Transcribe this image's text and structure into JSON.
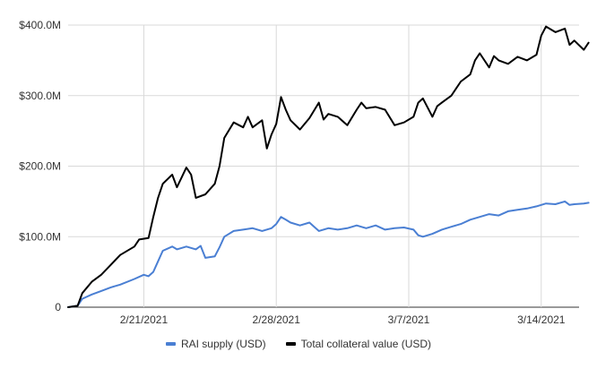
{
  "chart_data": {
    "type": "line",
    "title": "",
    "xlabel": "",
    "ylabel": "",
    "x_range": [
      "2021-02-17",
      "2021-03-16"
    ],
    "x_ticks": [
      {
        "date": "2021-02-21",
        "label": "2/21/2021"
      },
      {
        "date": "2021-02-28",
        "label": "2/28/2021"
      },
      {
        "date": "2021-03-07",
        "label": "3/7/2021"
      },
      {
        "date": "2021-03-14",
        "label": "3/14/2021"
      }
    ],
    "y_ticks": [
      {
        "value": 0,
        "label": "0"
      },
      {
        "value": 100,
        "label": "$100.0M"
      },
      {
        "value": 200,
        "label": "$200.0M"
      },
      {
        "value": 300,
        "label": "$300.0M"
      },
      {
        "value": 400,
        "label": "$400.0M"
      }
    ],
    "ylim": [
      0,
      400
    ],
    "y_unit": "$M",
    "grid": true,
    "legend_position": "bottom",
    "series": [
      {
        "name": "RAI supply (USD)",
        "color": "#4a7fd3",
        "points": [
          [
            "2021-02-17 00:00",
            0
          ],
          [
            "2021-02-17 12:00",
            2
          ],
          [
            "2021-02-17 18:00",
            12
          ],
          [
            "2021-02-18 06:00",
            18
          ],
          [
            "2021-02-18 18:00",
            23
          ],
          [
            "2021-02-19 06:00",
            28
          ],
          [
            "2021-02-19 18:00",
            32
          ],
          [
            "2021-02-20 12:00",
            40
          ],
          [
            "2021-02-21 00:00",
            46
          ],
          [
            "2021-02-21 06:00",
            44
          ],
          [
            "2021-02-21 12:00",
            50
          ],
          [
            "2021-02-21 18:00",
            65
          ],
          [
            "2021-02-22 00:00",
            80
          ],
          [
            "2021-02-22 12:00",
            86
          ],
          [
            "2021-02-22 18:00",
            82
          ],
          [
            "2021-02-23 06:00",
            86
          ],
          [
            "2021-02-23 18:00",
            82
          ],
          [
            "2021-02-24 00:00",
            87
          ],
          [
            "2021-02-24 06:00",
            70
          ],
          [
            "2021-02-24 18:00",
            72
          ],
          [
            "2021-02-25 00:00",
            85
          ],
          [
            "2021-02-25 06:00",
            100
          ],
          [
            "2021-02-25 18:00",
            108
          ],
          [
            "2021-02-26 06:00",
            110
          ],
          [
            "2021-02-26 18:00",
            112
          ],
          [
            "2021-02-27 06:00",
            108
          ],
          [
            "2021-02-27 18:00",
            112
          ],
          [
            "2021-02-28 00:00",
            118
          ],
          [
            "2021-02-28 06:00",
            128
          ],
          [
            "2021-02-28 12:00",
            124
          ],
          [
            "2021-02-28 18:00",
            120
          ],
          [
            "2021-03-01 06:00",
            116
          ],
          [
            "2021-03-01 18:00",
            120
          ],
          [
            "2021-03-02 06:00",
            108
          ],
          [
            "2021-03-02 18:00",
            112
          ],
          [
            "2021-03-03 06:00",
            110
          ],
          [
            "2021-03-03 18:00",
            112
          ],
          [
            "2021-03-04 06:00",
            116
          ],
          [
            "2021-03-04 18:00",
            112
          ],
          [
            "2021-03-05 06:00",
            116
          ],
          [
            "2021-03-05 18:00",
            110
          ],
          [
            "2021-03-06 06:00",
            112
          ],
          [
            "2021-03-06 18:00",
            113
          ],
          [
            "2021-03-07 06:00",
            110
          ],
          [
            "2021-03-07 12:00",
            102
          ],
          [
            "2021-03-07 18:00",
            100
          ],
          [
            "2021-03-08 06:00",
            104
          ],
          [
            "2021-03-08 18:00",
            110
          ],
          [
            "2021-03-09 06:00",
            114
          ],
          [
            "2021-03-09 18:00",
            118
          ],
          [
            "2021-03-10 06:00",
            124
          ],
          [
            "2021-03-10 18:00",
            128
          ],
          [
            "2021-03-11 06:00",
            132
          ],
          [
            "2021-03-11 18:00",
            130
          ],
          [
            "2021-03-12 06:00",
            136
          ],
          [
            "2021-03-12 18:00",
            138
          ],
          [
            "2021-03-13 06:00",
            140
          ],
          [
            "2021-03-13 18:00",
            143
          ],
          [
            "2021-03-14 06:00",
            147
          ],
          [
            "2021-03-14 18:00",
            146
          ],
          [
            "2021-03-15 06:00",
            150
          ],
          [
            "2021-03-15 12:00",
            145
          ],
          [
            "2021-03-15 18:00",
            146
          ],
          [
            "2021-03-16 06:00",
            147
          ],
          [
            "2021-03-16 12:00",
            148
          ]
        ]
      },
      {
        "name": "Total collateral value (USD)",
        "color": "#000000",
        "points": [
          [
            "2021-02-17 00:00",
            0
          ],
          [
            "2021-02-17 12:00",
            2
          ],
          [
            "2021-02-17 18:00",
            20
          ],
          [
            "2021-02-18 06:00",
            36
          ],
          [
            "2021-02-18 18:00",
            46
          ],
          [
            "2021-02-19 06:00",
            60
          ],
          [
            "2021-02-19 18:00",
            74
          ],
          [
            "2021-02-20 12:00",
            86
          ],
          [
            "2021-02-20 18:00",
            96
          ],
          [
            "2021-02-21 06:00",
            98
          ],
          [
            "2021-02-21 12:00",
            128
          ],
          [
            "2021-02-21 18:00",
            155
          ],
          [
            "2021-02-22 00:00",
            175
          ],
          [
            "2021-02-22 12:00",
            188
          ],
          [
            "2021-02-22 18:00",
            170
          ],
          [
            "2021-02-23 06:00",
            198
          ],
          [
            "2021-02-23 12:00",
            188
          ],
          [
            "2021-02-23 18:00",
            155
          ],
          [
            "2021-02-24 06:00",
            160
          ],
          [
            "2021-02-24 18:00",
            175
          ],
          [
            "2021-02-25 00:00",
            200
          ],
          [
            "2021-02-25 06:00",
            240
          ],
          [
            "2021-02-25 18:00",
            262
          ],
          [
            "2021-02-26 06:00",
            255
          ],
          [
            "2021-02-26 12:00",
            270
          ],
          [
            "2021-02-26 18:00",
            255
          ],
          [
            "2021-02-27 06:00",
            265
          ],
          [
            "2021-02-27 12:00",
            225
          ],
          [
            "2021-02-27 18:00",
            245
          ],
          [
            "2021-02-28 00:00",
            260
          ],
          [
            "2021-02-28 06:00",
            298
          ],
          [
            "2021-02-28 12:00",
            280
          ],
          [
            "2021-02-28 18:00",
            265
          ],
          [
            "2021-03-01 06:00",
            252
          ],
          [
            "2021-03-01 18:00",
            268
          ],
          [
            "2021-03-02 06:00",
            290
          ],
          [
            "2021-03-02 12:00",
            266
          ],
          [
            "2021-03-02 18:00",
            274
          ],
          [
            "2021-03-03 06:00",
            270
          ],
          [
            "2021-03-03 18:00",
            258
          ],
          [
            "2021-03-04 06:00",
            280
          ],
          [
            "2021-03-04 12:00",
            290
          ],
          [
            "2021-03-04 18:00",
            282
          ],
          [
            "2021-03-05 06:00",
            284
          ],
          [
            "2021-03-05 18:00",
            280
          ],
          [
            "2021-03-06 06:00",
            258
          ],
          [
            "2021-03-06 18:00",
            262
          ],
          [
            "2021-03-07 06:00",
            270
          ],
          [
            "2021-03-07 12:00",
            290
          ],
          [
            "2021-03-07 18:00",
            296
          ],
          [
            "2021-03-08 06:00",
            270
          ],
          [
            "2021-03-08 12:00",
            285
          ],
          [
            "2021-03-08 18:00",
            290
          ],
          [
            "2021-03-09 06:00",
            300
          ],
          [
            "2021-03-09 18:00",
            320
          ],
          [
            "2021-03-10 06:00",
            330
          ],
          [
            "2021-03-10 12:00",
            350
          ],
          [
            "2021-03-10 18:00",
            360
          ],
          [
            "2021-03-11 06:00",
            340
          ],
          [
            "2021-03-11 12:00",
            356
          ],
          [
            "2021-03-11 18:00",
            350
          ],
          [
            "2021-03-12 06:00",
            345
          ],
          [
            "2021-03-12 18:00",
            355
          ],
          [
            "2021-03-13 06:00",
            350
          ],
          [
            "2021-03-13 18:00",
            358
          ],
          [
            "2021-03-14 00:00",
            385
          ],
          [
            "2021-03-14 06:00",
            398
          ],
          [
            "2021-03-14 18:00",
            390
          ],
          [
            "2021-03-15 06:00",
            395
          ],
          [
            "2021-03-15 12:00",
            372
          ],
          [
            "2021-03-15 18:00",
            378
          ],
          [
            "2021-03-16 06:00",
            365
          ],
          [
            "2021-03-16 12:00",
            375
          ]
        ]
      }
    ]
  }
}
